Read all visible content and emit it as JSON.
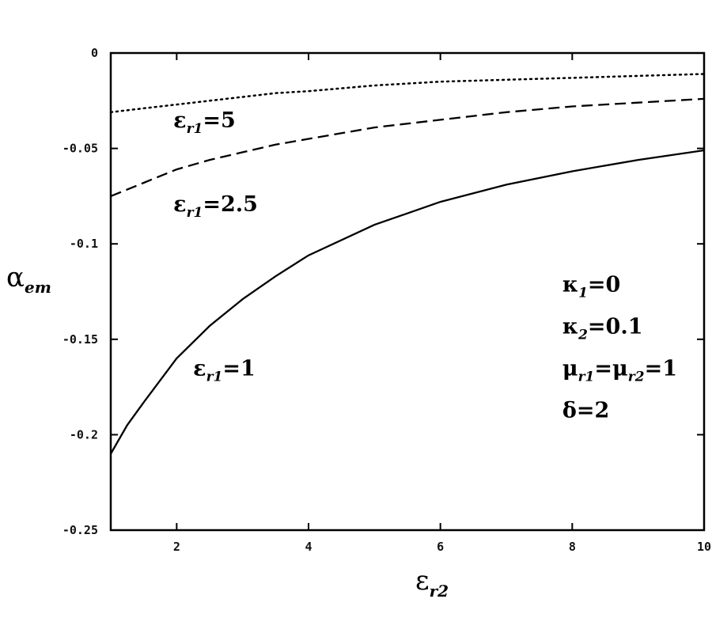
{
  "chart_data": {
    "type": "line",
    "title": "",
    "xlabel": {
      "symbol": "ε",
      "subscript": "r2"
    },
    "ylabel": {
      "symbol": "α",
      "subscript": "em"
    },
    "xlim": [
      1,
      10
    ],
    "ylim": [
      -0.25,
      0
    ],
    "x_ticks": [
      2,
      4,
      6,
      8,
      10
    ],
    "x_tick_labels": [
      "2",
      "4",
      "6",
      "8",
      "10"
    ],
    "y_ticks": [
      0,
      -0.05,
      -0.1,
      -0.15,
      -0.2,
      -0.25
    ],
    "y_tick_labels": [
      "0",
      "-0.05",
      "-0.1",
      "-0.15",
      "-0.2",
      "-0.25"
    ],
    "grid": false,
    "series": [
      {
        "style": "dotted",
        "x": [
          1,
          1.5,
          2,
          2.5,
          3,
          3.5,
          4,
          5,
          6,
          7,
          8,
          9,
          10
        ],
        "y": [
          -0.031,
          -0.029,
          -0.027,
          -0.025,
          -0.023,
          -0.021,
          -0.02,
          -0.017,
          -0.015,
          -0.014,
          -0.013,
          -0.012,
          -0.011
        ]
      },
      {
        "style": "dashed",
        "x": [
          1,
          1.5,
          2,
          2.5,
          3,
          3.5,
          4,
          5,
          6,
          7,
          8,
          9,
          10
        ],
        "y": [
          -0.075,
          -0.068,
          -0.061,
          -0.056,
          -0.052,
          -0.048,
          -0.045,
          -0.039,
          -0.035,
          -0.031,
          -0.028,
          -0.026,
          -0.024
        ]
      },
      {
        "style": "solid",
        "x": [
          1,
          1.25,
          1.5,
          2,
          2.5,
          3,
          3.5,
          4,
          5,
          6,
          7,
          8,
          9,
          10
        ],
        "y": [
          -0.21,
          -0.195,
          -0.183,
          -0.16,
          -0.143,
          -0.129,
          -0.117,
          -0.106,
          -0.09,
          -0.078,
          -0.069,
          -0.062,
          -0.056,
          -0.051
        ]
      }
    ],
    "annotations": {
      "curve_labels": [
        {
          "series": 0,
          "symbol": "ε",
          "subscript": "r1",
          "suffix": "=5",
          "x": 1.95,
          "y": -0.039
        },
        {
          "series": 1,
          "symbol": "ε",
          "subscript": "r1",
          "suffix": "=2.5",
          "x": 1.95,
          "y": -0.083
        },
        {
          "series": 2,
          "symbol": "ε",
          "subscript": "r1",
          "suffix": "=1",
          "x": 2.25,
          "y": -0.169
        }
      ],
      "parameters": [
        {
          "parts": [
            {
              "t": "κ"
            },
            {
              "t": "1",
              "sub": true
            },
            {
              "t": "=0"
            }
          ],
          "x": 7.85,
          "y": -0.125
        },
        {
          "parts": [
            {
              "t": "κ"
            },
            {
              "t": "2",
              "sub": true
            },
            {
              "t": "=0.1"
            }
          ],
          "x": 7.85,
          "y": -0.147
        },
        {
          "parts": [
            {
              "t": "μ"
            },
            {
              "t": "r1",
              "sub": true
            },
            {
              "t": "=μ"
            },
            {
              "t": "r2",
              "sub": true
            },
            {
              "t": "=1"
            }
          ],
          "x": 7.85,
          "y": -0.169
        },
        {
          "parts": [
            {
              "t": "δ=2"
            }
          ],
          "x": 7.85,
          "y": -0.191
        }
      ]
    }
  }
}
